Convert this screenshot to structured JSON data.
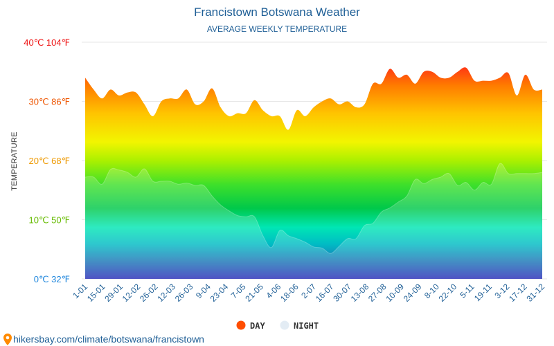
{
  "colors": {
    "day_legend": "#ff4d00",
    "night_legend": "#e3ecf4",
    "title": "#1f5f96",
    "grid": "#e6e6e6",
    "pin": "#ff8a00"
  },
  "chart_data": {
    "type": "area",
    "title": "Francistown Botswana Weather",
    "subtitle": "AVERAGE WEEKLY TEMPERATURE",
    "ylabel": "TEMPERATURE",
    "ylim": [
      0,
      40
    ],
    "grid": true,
    "legend_position": "bottom",
    "y_ticks": [
      {
        "value": 0,
        "label": "0℃ 32℉",
        "color": "#2288dd"
      },
      {
        "value": 10,
        "label": "10℃ 50℉",
        "color": "#66bb00"
      },
      {
        "value": 20,
        "label": "20℃ 68℉",
        "color": "#ee9900"
      },
      {
        "value": 30,
        "label": "30℃ 86℉",
        "color": "#ee5500"
      },
      {
        "value": 40,
        "label": "40℃ 104℉",
        "color": "#ee1111"
      }
    ],
    "x_labels": [
      "1-01",
      "15-01",
      "29-01",
      "12-02",
      "26-02",
      "12-03",
      "26-03",
      "9-04",
      "23-04",
      "7-05",
      "21-05",
      "4-06",
      "18-06",
      "2-07",
      "16-07",
      "30-07",
      "13-08",
      "27-08",
      "10-09",
      "24-09",
      "8-10",
      "22-10",
      "5-11",
      "19-11",
      "3-12",
      "17-12",
      "31-12"
    ],
    "series": [
      {
        "name": "DAY",
        "values": [
          34,
          32,
          30.5,
          32,
          31,
          31.5,
          31.5,
          29.5,
          27.5,
          30,
          30.5,
          30.5,
          32,
          29.5,
          30,
          32.2,
          29,
          27.5,
          28,
          28,
          30.2,
          28.5,
          27.5,
          27.5,
          25.2,
          28.5,
          27.5,
          29,
          30,
          30.5,
          29.5,
          30,
          29,
          29.5,
          33,
          33,
          35.5,
          34,
          34.5,
          33,
          35,
          35,
          34,
          34,
          35,
          35.7,
          33.5,
          33.5,
          33.5,
          34,
          34.8,
          31,
          34.5,
          32,
          32
        ]
      },
      {
        "name": "NIGHT",
        "values": [
          17.2,
          17.2,
          16,
          18.5,
          18.4,
          18,
          17.2,
          18.6,
          16.5,
          16.5,
          16.5,
          16,
          16.2,
          15.8,
          15.8,
          14,
          12.5,
          11.5,
          10.7,
          10.5,
          10.5,
          7.3,
          5.3,
          8.2,
          7.3,
          6.8,
          6.2,
          5.4,
          5.2,
          4.3,
          5.5,
          6.8,
          6.8,
          9,
          9.4,
          11.3,
          12,
          13,
          14,
          16.8,
          16.1,
          16.8,
          17.2,
          17.8,
          15.8,
          16.3,
          15,
          16.3,
          16,
          19.5,
          17.8,
          17.8,
          17.8,
          17.8,
          18
        ]
      }
    ]
  },
  "legend": {
    "day_label": "DAY",
    "night_label": "NIGHT"
  },
  "source_text": "hikersbay.com/climate/botswana/francistown"
}
